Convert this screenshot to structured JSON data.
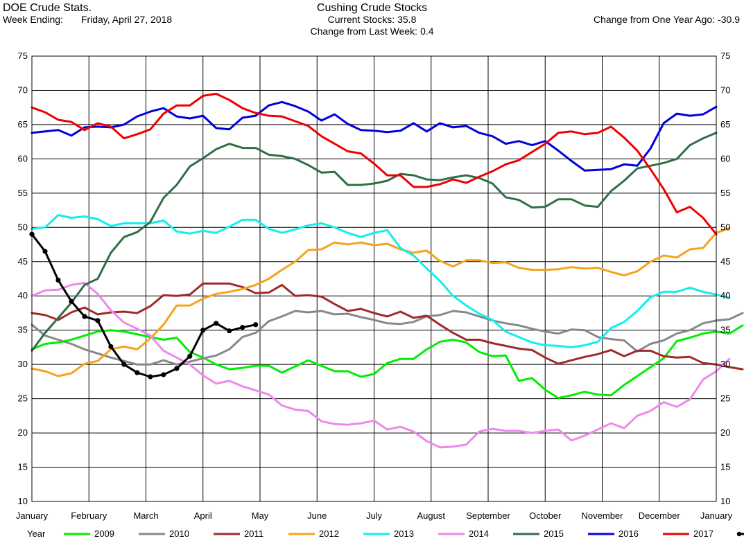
{
  "header": {
    "left_title": "DOE Crude Stats.",
    "week_ending_label": "Week Ending:",
    "week_ending_value": "Friday, April 27, 2018",
    "center_title": "Cushing Crude Stocks",
    "current_label": "Current Stocks:",
    "current_value": "35.8",
    "change_week_label": "Change from Last Week:",
    "change_week_value": "0.4",
    "change_year_label": "Change from One Year Ago:",
    "change_year_value": "-30.9"
  },
  "chart_data": {
    "type": "line",
    "title": "Cushing Crude Stocks",
    "xlabel": "",
    "ylabel": "",
    "ylim": [
      10,
      75
    ],
    "yticks": [
      10,
      15,
      20,
      25,
      30,
      35,
      40,
      45,
      50,
      55,
      60,
      65,
      70,
      75
    ],
    "xlim": [
      0,
      12
    ],
    "xticks": [
      "January",
      "February",
      "March",
      "April",
      "May",
      "June",
      "July",
      "August",
      "September",
      "October",
      "November",
      "December",
      "January"
    ],
    "grid": true,
    "legend_title": "Year",
    "legend_position": "bottom",
    "series": [
      {
        "name": "2009",
        "color": "#00ee00",
        "markers": false,
        "values": [
          32.2,
          33.0,
          33.2,
          33.6,
          34.2,
          34.8,
          35.0,
          34.8,
          34.4,
          34.0,
          33.6,
          33.9,
          31.8,
          31.0,
          30.0,
          29.3,
          29.5,
          29.8,
          29.8,
          28.8,
          29.7,
          30.6,
          29.8,
          29.0,
          29.0,
          28.2,
          28.6,
          30.2,
          30.8,
          30.8,
          32.2,
          33.3,
          33.6,
          33.2,
          31.8,
          31.2,
          31.3,
          27.6,
          28.0,
          26.3,
          25.1,
          25.5,
          26.0,
          25.6,
          25.5,
          27.0,
          28.3,
          29.6,
          30.9,
          33.4,
          33.9,
          34.5,
          34.8,
          34.5,
          35.7
        ]
      },
      {
        "name": "2010",
        "color": "#888888",
        "markers": false,
        "values": [
          35.8,
          34.2,
          33.6,
          33.0,
          32.2,
          31.6,
          31.0,
          30.5,
          30.0,
          30.0,
          30.6,
          30.0,
          30.4,
          30.9,
          31.3,
          32.2,
          34.0,
          34.6,
          36.3,
          37.0,
          37.8,
          37.6,
          37.8,
          37.3,
          37.4,
          36.9,
          36.5,
          36.0,
          35.9,
          36.2,
          37.0,
          37.2,
          37.8,
          37.6,
          37.0,
          36.4,
          36.0,
          35.7,
          35.2,
          34.8,
          34.5,
          35.1,
          35.0,
          34.0,
          33.7,
          33.5,
          31.9,
          33.0,
          33.5,
          34.5,
          35.0,
          36.0,
          36.4,
          36.6,
          37.5
        ]
      },
      {
        "name": "2011",
        "color": "#a02a2a",
        "markers": false,
        "values": [
          37.5,
          37.2,
          36.5,
          37.6,
          38.3,
          37.3,
          37.6,
          37.7,
          37.5,
          38.5,
          40.1,
          40.0,
          40.2,
          41.8,
          41.8,
          41.8,
          41.3,
          40.4,
          40.5,
          41.6,
          40.0,
          40.1,
          39.9,
          38.8,
          37.8,
          38.1,
          37.5,
          37.0,
          37.7,
          36.8,
          37.1,
          35.8,
          34.6,
          33.6,
          33.6,
          33.1,
          32.7,
          32.3,
          32.1,
          31.0,
          30.1,
          30.6,
          31.1,
          31.5,
          32.1,
          31.2,
          32.0,
          32.0,
          31.2,
          31.0,
          31.1,
          30.2,
          30.0,
          29.6,
          29.3
        ]
      },
      {
        "name": "2012",
        "color": "#f5a31b",
        "markers": false,
        "values": [
          29.4,
          29.0,
          28.3,
          28.7,
          30.1,
          30.5,
          32.2,
          32.6,
          32.2,
          33.8,
          35.8,
          38.6,
          38.6,
          39.6,
          40.3,
          40.6,
          41.0,
          41.6,
          42.5,
          43.8,
          45.0,
          46.7,
          46.8,
          47.8,
          47.5,
          47.8,
          47.4,
          47.6,
          46.8,
          46.3,
          46.6,
          45.1,
          44.3,
          45.2,
          45.2,
          44.8,
          44.9,
          44.1,
          43.8,
          43.8,
          43.9,
          44.2,
          44.0,
          44.1,
          43.5,
          43.0,
          43.6,
          45.0,
          45.9,
          45.6,
          46.8,
          47.0,
          49.2,
          49.9
        ]
      },
      {
        "name": "2013",
        "color": "#11eeee",
        "markers": false,
        "values": [
          49.8,
          50.0,
          51.8,
          51.4,
          51.6,
          51.2,
          50.2,
          50.6,
          50.6,
          50.6,
          51.0,
          49.4,
          49.1,
          49.5,
          49.2,
          50.1,
          51.1,
          51.1,
          49.8,
          49.2,
          49.7,
          50.3,
          50.6,
          50.0,
          49.2,
          48.6,
          49.2,
          49.6,
          47.0,
          45.9,
          44.0,
          42.2,
          40.0,
          38.6,
          37.4,
          36.5,
          34.8,
          34.0,
          33.2,
          32.8,
          32.7,
          32.5,
          32.8,
          33.3,
          35.3,
          36.2,
          37.8,
          39.8,
          40.6,
          40.6,
          41.2,
          40.6,
          40.2,
          39.7
        ]
      },
      {
        "name": "2014",
        "color": "#ee88ee",
        "markers": false,
        "values": [
          40.0,
          40.8,
          40.9,
          41.6,
          41.9,
          40.3,
          37.9,
          36.1,
          35.2,
          34.2,
          32.0,
          31.0,
          30.0,
          28.4,
          27.2,
          27.6,
          26.8,
          26.2,
          25.6,
          24.0,
          23.4,
          23.2,
          21.7,
          21.3,
          21.2,
          21.4,
          21.8,
          20.5,
          20.9,
          20.2,
          18.8,
          17.9,
          18.0,
          18.3,
          20.2,
          20.6,
          20.3,
          20.3,
          20.0,
          20.3,
          20.5,
          18.9,
          19.6,
          20.5,
          21.4,
          20.7,
          22.5,
          23.2,
          24.5,
          23.8,
          24.9,
          27.8,
          29.0,
          30.8
        ]
      },
      {
        "name": "2015",
        "color": "#2f6e47",
        "markers": false,
        "values": [
          32.0,
          34.6,
          36.8,
          39.0,
          41.6,
          42.5,
          46.3,
          48.6,
          49.3,
          50.8,
          54.3,
          56.2,
          58.9,
          60.1,
          61.4,
          62.2,
          61.6,
          61.6,
          60.6,
          60.4,
          60.0,
          59.1,
          58.0,
          58.1,
          56.2,
          56.2,
          56.4,
          56.8,
          57.8,
          57.6,
          57.0,
          56.9,
          57.3,
          57.6,
          57.2,
          56.4,
          54.4,
          54.0,
          52.9,
          53.0,
          54.1,
          54.1,
          53.2,
          53.0,
          55.3,
          56.8,
          58.6,
          59.0,
          59.4,
          60.0,
          62.0,
          63.0,
          63.8
        ]
      },
      {
        "name": "2016",
        "color": "#0000dd",
        "markers": false,
        "values": [
          63.8,
          64.0,
          64.2,
          63.4,
          64.6,
          64.7,
          64.6,
          65.0,
          66.2,
          66.9,
          67.4,
          66.2,
          65.9,
          66.3,
          64.5,
          64.3,
          66.0,
          66.3,
          67.8,
          68.3,
          67.7,
          66.9,
          65.6,
          66.5,
          65.1,
          64.2,
          64.1,
          63.9,
          64.1,
          65.2,
          64.0,
          65.2,
          64.6,
          64.8,
          63.8,
          63.3,
          62.2,
          62.6,
          62.0,
          62.6,
          61.2,
          59.7,
          58.3,
          58.4,
          58.5,
          59.2,
          59.0,
          61.5,
          65.2,
          66.6,
          66.3,
          66.5,
          67.6
        ]
      },
      {
        "name": "2017",
        "color": "#ee0000",
        "markers": false,
        "values": [
          67.5,
          66.8,
          65.7,
          65.4,
          64.2,
          65.2,
          64.7,
          63.0,
          63.6,
          64.3,
          66.6,
          67.8,
          67.8,
          69.2,
          69.5,
          68.6,
          67.4,
          66.7,
          66.3,
          66.2,
          65.5,
          64.8,
          63.3,
          62.2,
          61.1,
          60.8,
          59.3,
          57.6,
          57.6,
          55.9,
          55.9,
          56.3,
          57.0,
          56.5,
          57.4,
          58.2,
          59.2,
          59.8,
          61.0,
          62.2,
          63.8,
          64.0,
          63.6,
          63.8,
          64.7,
          63.1,
          61.2,
          58.5,
          55.6,
          52.2,
          53.0,
          51.4,
          49.0
        ]
      },
      {
        "name": "2018",
        "color": "#000000",
        "markers": true,
        "values": [
          49.0,
          46.5,
          42.3,
          39.2,
          37.0,
          36.4,
          32.6,
          30.0,
          28.8,
          28.2,
          28.5,
          29.4,
          31.2,
          35.0,
          36.0,
          34.9,
          35.4,
          35.8
        ]
      }
    ]
  }
}
